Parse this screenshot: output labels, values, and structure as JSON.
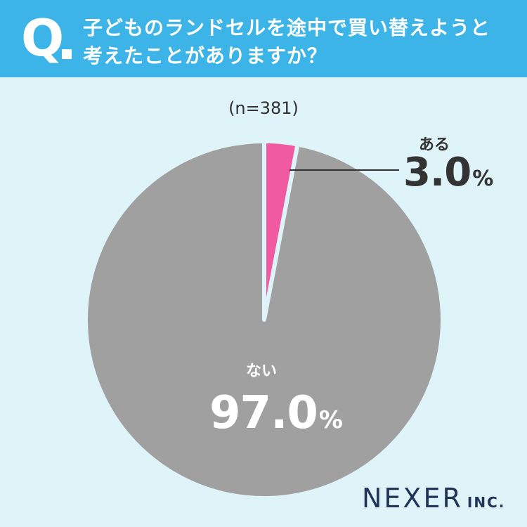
{
  "header": {
    "q_letter": "Q",
    "question_line1": "子どものランドセルを途中で買い替えようと",
    "question_line2": "考えたことがありますか？",
    "background_color": "#3cb4e7"
  },
  "sample_size": "(n=381)",
  "chart_data": {
    "type": "pie",
    "title": "子どものランドセルを途中で買い替えようと考えたことがありますか？",
    "subtitle": "(n=381)",
    "slices": [
      {
        "label": "ある",
        "value": 3.0,
        "display": "3.0",
        "unit": "%",
        "color": "#f05aa0"
      },
      {
        "label": "ない",
        "value": 97.0,
        "display": "97.0",
        "unit": "%",
        "color": "#a0a0a0"
      }
    ],
    "start_angle": "12 o'clock",
    "direction": "clockwise"
  },
  "logo": {
    "main": "NEXER",
    "sub": "INC."
  }
}
